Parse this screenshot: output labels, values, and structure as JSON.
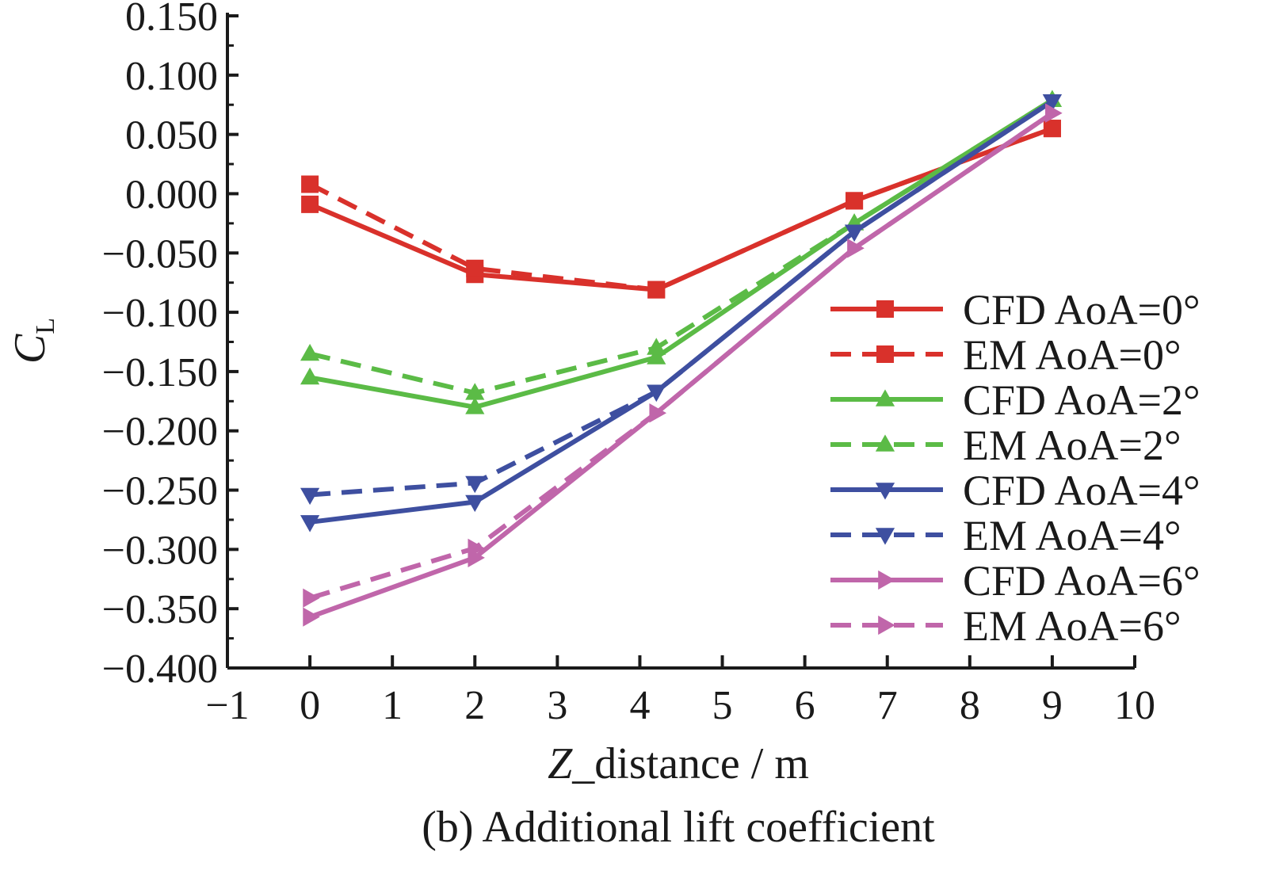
{
  "chart_data": {
    "type": "line",
    "caption": "(b) Additional lift coefficient",
    "xlabel": {
      "italic": "Z",
      "rest": "_distance / m"
    },
    "ylabel": {
      "main": "C",
      "sub": "L"
    },
    "xlim": [
      -1,
      10
    ],
    "ylim": [
      -0.4,
      0.15
    ],
    "xticks": [
      -1,
      0,
      1,
      2,
      3,
      4,
      5,
      6,
      7,
      8,
      9,
      10
    ],
    "xtick_labels": [
      "−1",
      "0",
      "1",
      "2",
      "3",
      "4",
      "5",
      "6",
      "7",
      "8",
      "9",
      "10"
    ],
    "yticks": [
      0.15,
      0.1,
      0.05,
      0.0,
      -0.05,
      -0.1,
      -0.15,
      -0.2,
      -0.25,
      -0.3,
      -0.35,
      -0.4
    ],
    "ytick_labels": [
      "0.150",
      "0.100",
      "0.050",
      "0.000",
      "−0.050",
      "−0.100",
      "−0.150",
      "−0.200",
      "−0.250",
      "−0.300",
      "−0.350",
      "−0.400"
    ],
    "grid": false,
    "legend_position": "right",
    "x": [
      0,
      2,
      4.2,
      6.6,
      9
    ],
    "series": [
      {
        "name": "CFD AoA=0°",
        "color": "#d9312b",
        "dash": "solid",
        "marker": "square",
        "values": [
          -0.009,
          -0.068,
          -0.081,
          -0.006,
          0.055
        ]
      },
      {
        "name": "EM AoA=0°",
        "color": "#d9312b",
        "dash": "dashed",
        "marker": "square",
        "values": [
          0.008,
          -0.063,
          -0.081,
          -0.006,
          0.055
        ]
      },
      {
        "name": "CFD AoA=2°",
        "color": "#5bbb46",
        "dash": "solid",
        "marker": "triangle-up",
        "values": [
          -0.155,
          -0.18,
          -0.138,
          -0.025,
          0.079
        ]
      },
      {
        "name": "EM AoA=2°",
        "color": "#5bbb46",
        "dash": "dashed",
        "marker": "triangle-up",
        "values": [
          -0.135,
          -0.168,
          -0.13,
          -0.025,
          0.079
        ]
      },
      {
        "name": "CFD AoA=4°",
        "color": "#3e4fa0",
        "dash": "solid",
        "marker": "triangle-down",
        "values": [
          -0.277,
          -0.26,
          -0.167,
          -0.032,
          0.078
        ]
      },
      {
        "name": "EM AoA=4°",
        "color": "#3e4fa0",
        "dash": "dashed",
        "marker": "triangle-down",
        "values": [
          -0.254,
          -0.244,
          -0.167,
          -0.032,
          0.078
        ]
      },
      {
        "name": "CFD AoA=6°",
        "color": "#c066aa",
        "dash": "solid",
        "marker": "triangle-right",
        "values": [
          -0.357,
          -0.307,
          -0.185,
          -0.046,
          0.068
        ]
      },
      {
        "name": "EM AoA=6°",
        "color": "#c066aa",
        "dash": "dashed",
        "marker": "triangle-right",
        "values": [
          -0.341,
          -0.299,
          -0.185,
          -0.046,
          0.068
        ]
      }
    ]
  }
}
